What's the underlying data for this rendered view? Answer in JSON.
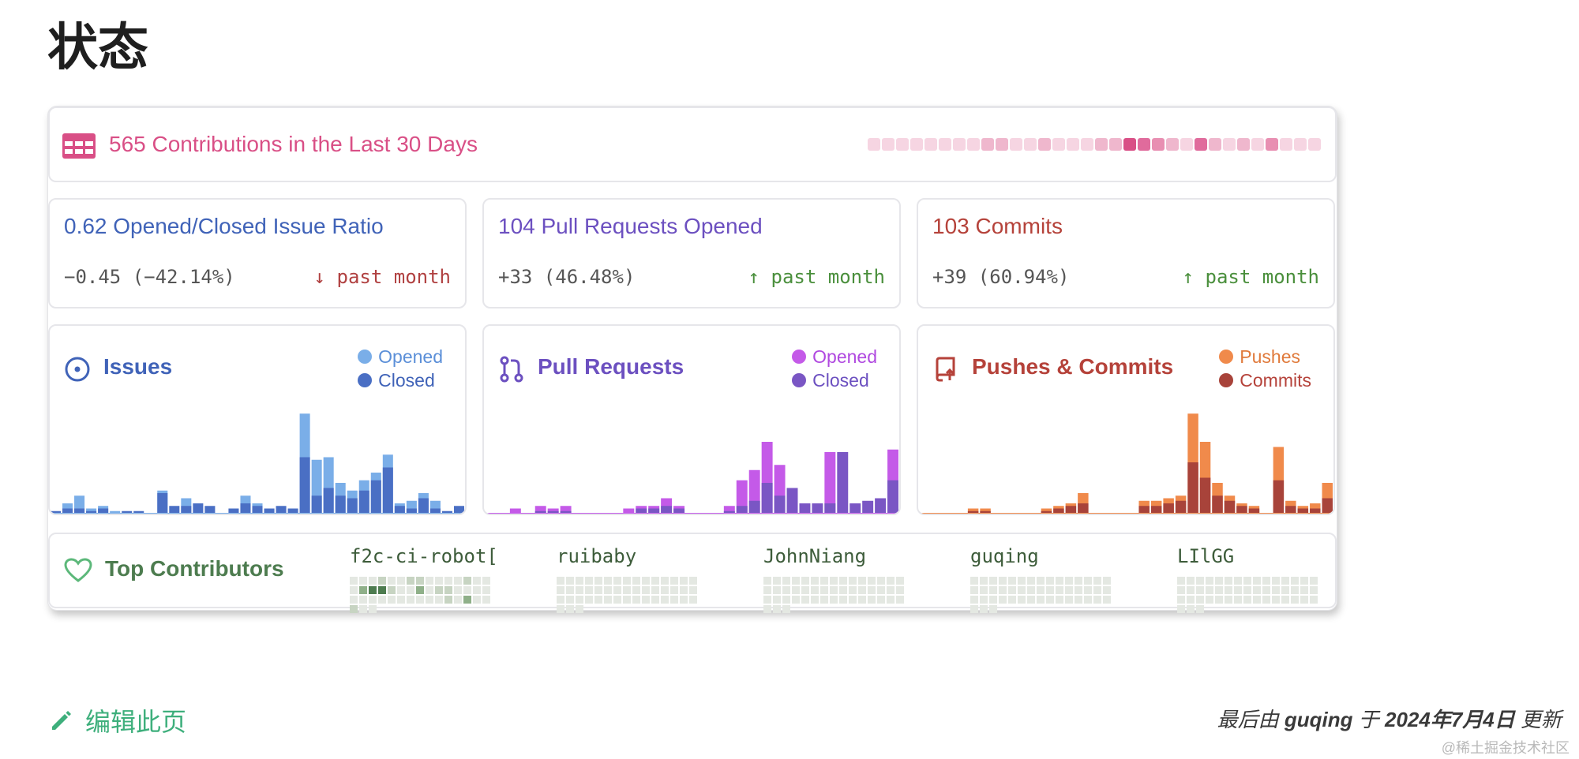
{
  "page": {
    "title": "状态"
  },
  "contributions": {
    "title": "565 Contributions in the Last 30 Days",
    "heatmap": [
      1,
      1,
      1,
      1,
      1,
      1,
      1,
      1,
      2,
      2,
      1,
      1,
      2,
      1,
      1,
      1,
      2,
      2,
      5,
      4,
      3,
      2,
      1,
      4,
      2,
      1,
      2,
      1,
      3,
      1,
      1,
      1
    ],
    "heat_colors": [
      "#fbe6ef",
      "#f6d5e2",
      "#efb7cd",
      "#e88fb2",
      "#e06b9c",
      "#d94f86"
    ]
  },
  "stats": [
    {
      "title": "0.62 Opened/Closed Issue Ratio",
      "delta": "−0.45 (−42.14%)",
      "arrow": "↓",
      "trend": "past month",
      "title_color": "#4063b8",
      "trend_color": "#b04040"
    },
    {
      "title": "104 Pull Requests Opened",
      "delta": "+33 (46.48%)",
      "arrow": "↑",
      "trend": "past month",
      "title_color": "#6c50c0",
      "trend_color": "#4a8f3c"
    },
    {
      "title": "103 Commits",
      "delta": "+39 (60.94%)",
      "arrow": "↑",
      "trend": "past month",
      "title_color": "#b5423a",
      "trend_color": "#4a8f3c"
    }
  ],
  "charts": {
    "issues": {
      "title": "Issues",
      "legend": [
        "Opened",
        "Closed"
      ],
      "colors": [
        "#7aaee8",
        "#4a6fc4"
      ],
      "title_color": "#4063b8"
    },
    "pull_requests": {
      "title": "Pull Requests",
      "legend": [
        "Opened",
        "Closed"
      ],
      "colors": [
        "#c45ae8",
        "#7a56c4"
      ],
      "title_color": "#6c50c0"
    },
    "pushes": {
      "title": "Pushes & Commits",
      "legend": [
        "Pushes",
        "Commits"
      ],
      "colors": [
        "#f08a4b",
        "#a8433a"
      ],
      "title_color": "#b5423a"
    }
  },
  "chart_data": [
    {
      "type": "bar",
      "title": "Issues",
      "series": [
        {
          "name": "Opened",
          "values": [
            0,
            2,
            5,
            1,
            1,
            1,
            0,
            0,
            0,
            1,
            0,
            3,
            0,
            0,
            0,
            0,
            3,
            1,
            0,
            0,
            0,
            17,
            14,
            12,
            5,
            3,
            4,
            3,
            5,
            1,
            3,
            2,
            3,
            0,
            0
          ]
        },
        {
          "name": "Closed",
          "values": [
            1,
            2,
            2,
            1,
            2,
            0,
            1,
            1,
            0,
            8,
            3,
            3,
            4,
            3,
            0,
            2,
            4,
            3,
            2,
            3,
            2,
            22,
            7,
            10,
            7,
            6,
            9,
            13,
            18,
            3,
            2,
            6,
            2,
            1,
            3
          ]
        }
      ],
      "ylim": [
        0,
        40
      ]
    },
    {
      "type": "bar",
      "title": "Pull Requests",
      "series": [
        {
          "name": "Opened",
          "values": [
            0,
            0,
            2,
            0,
            2,
            1,
            2,
            0,
            0,
            0,
            0,
            2,
            1,
            1,
            3,
            1,
            0,
            0,
            0,
            2,
            10,
            12,
            16,
            12,
            0,
            0,
            0,
            20,
            0,
            0,
            0,
            0,
            12
          ]
        },
        {
          "name": "Closed",
          "values": [
            0,
            0,
            0,
            0,
            1,
            1,
            1,
            0,
            0,
            0,
            0,
            0,
            2,
            2,
            3,
            2,
            0,
            0,
            0,
            1,
            3,
            5,
            12,
            7,
            10,
            4,
            4,
            4,
            24,
            4,
            5,
            6,
            13
          ]
        }
      ],
      "ylim": [
        0,
        40
      ]
    },
    {
      "type": "bar",
      "title": "Pushes & Commits",
      "series": [
        {
          "name": "Pushes",
          "values": [
            0,
            0,
            0,
            0,
            1,
            1,
            0,
            0,
            0,
            0,
            1,
            1,
            1,
            4,
            0,
            0,
            0,
            0,
            2,
            2,
            2,
            2,
            19,
            14,
            5,
            2,
            1,
            1,
            0,
            13,
            2,
            1,
            2,
            6
          ]
        },
        {
          "name": "Commits",
          "values": [
            0,
            0,
            0,
            0,
            1,
            1,
            0,
            0,
            0,
            0,
            1,
            2,
            3,
            4,
            0,
            0,
            0,
            0,
            3,
            3,
            4,
            5,
            20,
            14,
            7,
            5,
            3,
            2,
            0,
            13,
            3,
            2,
            2,
            6
          ]
        }
      ],
      "ylim": [
        0,
        40
      ]
    }
  ],
  "top_contributors": {
    "label": "Top Contributors",
    "people": [
      {
        "name": "f2c-ci-robot[",
        "activity": [
          0,
          0,
          0,
          1,
          0,
          0,
          1,
          1,
          0,
          0,
          0,
          0,
          1,
          0,
          0,
          0,
          2,
          3,
          3,
          1,
          0,
          0,
          2,
          0,
          1,
          1,
          0,
          0,
          0,
          0,
          0,
          0,
          0,
          0,
          0,
          0,
          0,
          0,
          0,
          0,
          1,
          0,
          2,
          0,
          0,
          1,
          0,
          0
        ]
      },
      {
        "name": "ruibaby",
        "activity": [
          0,
          0,
          0,
          0,
          0,
          0,
          0,
          0,
          0,
          0,
          0,
          0,
          0,
          0,
          0,
          0,
          0,
          0,
          0,
          0,
          0,
          0,
          0,
          0,
          0,
          0,
          0,
          0,
          0,
          0,
          0,
          0,
          0,
          0,
          0,
          0,
          0,
          0,
          0,
          0,
          0,
          0,
          0,
          0,
          0,
          0,
          0,
          0
        ]
      },
      {
        "name": "JohnNiang",
        "activity": [
          0,
          0,
          0,
          0,
          0,
          0,
          0,
          0,
          0,
          0,
          0,
          0,
          0,
          0,
          0,
          0,
          0,
          0,
          0,
          0,
          0,
          0,
          0,
          0,
          0,
          0,
          0,
          0,
          0,
          0,
          0,
          0,
          0,
          0,
          0,
          0,
          0,
          0,
          0,
          0,
          0,
          0,
          0,
          0,
          0,
          0,
          0,
          0
        ]
      },
      {
        "name": "guqing",
        "activity": [
          0,
          0,
          0,
          0,
          0,
          0,
          0,
          0,
          0,
          0,
          0,
          0,
          0,
          0,
          0,
          0,
          0,
          0,
          0,
          0,
          0,
          0,
          0,
          0,
          0,
          0,
          0,
          0,
          0,
          0,
          0,
          0,
          0,
          0,
          0,
          0,
          0,
          0,
          0,
          0,
          0,
          0,
          0,
          0,
          0,
          0,
          0,
          0
        ]
      },
      {
        "name": "LIlGG",
        "activity": [
          0,
          0,
          0,
          0,
          0,
          0,
          0,
          0,
          0,
          0,
          0,
          0,
          0,
          0,
          0,
          0,
          0,
          0,
          0,
          0,
          0,
          0,
          0,
          0,
          0,
          0,
          0,
          0,
          0,
          0,
          0,
          0,
          0,
          0,
          0,
          0,
          0,
          0,
          0,
          0,
          0,
          0,
          0,
          0,
          0,
          0,
          0,
          0
        ]
      }
    ],
    "colors": [
      "#e4e8e2",
      "#c7d4c2",
      "#8fb089",
      "#4d7c4f"
    ]
  },
  "footer": {
    "edit_label": "编辑此页",
    "updated_prefix": "最后由",
    "updated_user": "guqing",
    "updated_mid": "于",
    "updated_date": "2024年7月4日",
    "updated_suffix": "更新",
    "watermark": "@稀土掘金技术社区"
  }
}
